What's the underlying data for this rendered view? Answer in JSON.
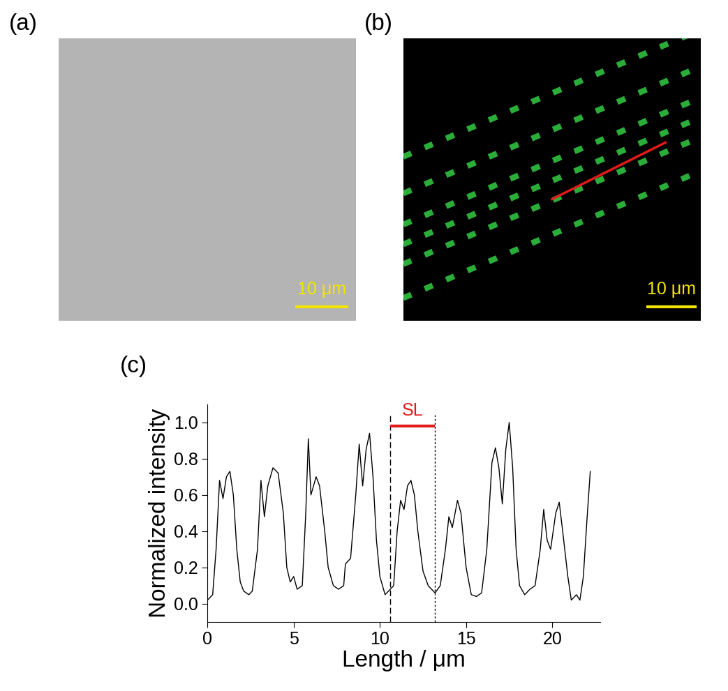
{
  "panel_labels": [
    "(a)",
    "(b)",
    "(c)"
  ],
  "images": [
    {
      "panel": "(a)",
      "scale_bar": "10 μm"
    },
    {
      "panel": "(b)",
      "scale_bar": "10 μm"
    }
  ],
  "chart_data": {
    "type": "line",
    "x_label": "Length / μm",
    "y_label": "Normalized intensity",
    "color": "#000000",
    "x": [
      0,
      0.3,
      0.5,
      0.7,
      0.9,
      1.1,
      1.3,
      1.5,
      1.7,
      1.9,
      2.1,
      2.4,
      2.6,
      2.9,
      3.1,
      3.3,
      3.5,
      3.8,
      4.1,
      4.4,
      4.6,
      4.8,
      5.0,
      5.2,
      5.5,
      5.7,
      5.85,
      6.0,
      6.3,
      6.5,
      6.8,
      7.0,
      7.3,
      7.6,
      7.9,
      8.0,
      8.3,
      8.6,
      8.8,
      9.0,
      9.2,
      9.4,
      9.6,
      9.8,
      10.0,
      10.3,
      10.6,
      10.8,
      11.0,
      11.2,
      11.4,
      11.6,
      11.8,
      12.0,
      12.2,
      12.5,
      12.8,
      13.2,
      13.5,
      13.8,
      14.0,
      14.2,
      14.5,
      14.7,
      15.0,
      15.3,
      15.6,
      15.9,
      16.2,
      16.5,
      16.7,
      16.9,
      17.1,
      17.3,
      17.5,
      17.7,
      17.9,
      18.1,
      18.4,
      18.7,
      19.0,
      19.3,
      19.5,
      19.7,
      19.9,
      20.2,
      20.4,
      20.6,
      20.9,
      21.1,
      21.4,
      21.6,
      21.8,
      22.0,
      22.2
    ],
    "values": [
      0.02,
      0.05,
      0.3,
      0.68,
      0.58,
      0.7,
      0.73,
      0.6,
      0.3,
      0.12,
      0.07,
      0.05,
      0.07,
      0.3,
      0.68,
      0.48,
      0.65,
      0.75,
      0.72,
      0.5,
      0.2,
      0.12,
      0.15,
      0.08,
      0.1,
      0.5,
      0.91,
      0.6,
      0.7,
      0.65,
      0.4,
      0.2,
      0.1,
      0.08,
      0.1,
      0.22,
      0.25,
      0.6,
      0.88,
      0.65,
      0.85,
      0.94,
      0.7,
      0.35,
      0.15,
      0.05,
      0.08,
      0.1,
      0.4,
      0.57,
      0.52,
      0.65,
      0.68,
      0.6,
      0.4,
      0.18,
      0.1,
      0.06,
      0.1,
      0.3,
      0.48,
      0.42,
      0.57,
      0.5,
      0.2,
      0.05,
      0.04,
      0.06,
      0.3,
      0.78,
      0.86,
      0.75,
      0.55,
      0.85,
      1.0,
      0.75,
      0.3,
      0.1,
      0.05,
      0.08,
      0.1,
      0.3,
      0.52,
      0.35,
      0.3,
      0.5,
      0.56,
      0.4,
      0.15,
      0.02,
      0.05,
      0.02,
      0.15,
      0.45,
      0.73
    ],
    "xlim": [
      0,
      22.8
    ],
    "xticks": [
      0,
      5,
      10,
      15,
      20
    ],
    "ylim": [
      -0.1,
      1.1
    ],
    "yticks": [
      0.0,
      0.2,
      0.4,
      0.6,
      0.8,
      1.0
    ],
    "sl_marker": {
      "text": "SL",
      "start": 10.6,
      "end": 13.2,
      "y": 0.98,
      "color": "#e31a1c"
    }
  }
}
